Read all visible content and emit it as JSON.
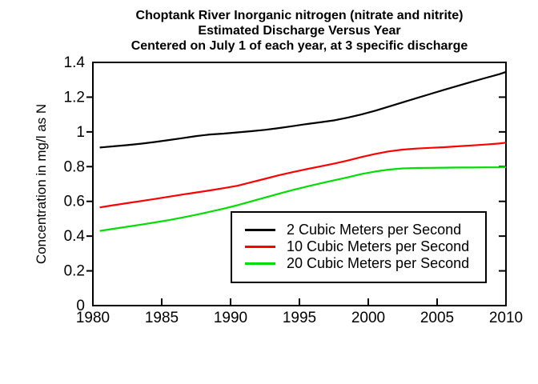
{
  "chart_data": {
    "type": "line",
    "title_lines": [
      "Choptank River Inorganic nitrogen (nitrate and nitrite)",
      "Estimated Discharge Versus Year",
      "Centered on July 1 of each year, at 3 specific discharge"
    ],
    "xlabel": "",
    "ylabel": "Concentration in mg/l as N",
    "x_range": [
      1980,
      2010
    ],
    "y_range": [
      0,
      1.4
    ],
    "x_ticks": [
      1980,
      1985,
      1990,
      1995,
      2000,
      2005,
      2010
    ],
    "x_tick_labels": [
      "1980",
      "1985",
      "1990",
      "1995",
      "2000",
      "2005",
      "2010"
    ],
    "y_ticks": [
      0,
      0.2,
      0.4,
      0.6,
      0.8,
      1,
      1.2,
      1.4
    ],
    "y_tick_labels": [
      "0",
      "0.2",
      "0.4",
      "0.6",
      "0.8",
      "1",
      "1.2",
      "1.4"
    ],
    "grid": false,
    "legend_position": "inside-lower-right",
    "axis_color": "#000000",
    "background_color": "#ffffff",
    "series": [
      {
        "name": "2 Cubic Meters per Second",
        "color": "#000000",
        "points": [
          [
            1980.5,
            0.91
          ],
          [
            1981.5,
            0.917
          ],
          [
            1982.5,
            0.924
          ],
          [
            1983.5,
            0.932
          ],
          [
            1984.5,
            0.942
          ],
          [
            1985.5,
            0.953
          ],
          [
            1986.5,
            0.964
          ],
          [
            1987.5,
            0.976
          ],
          [
            1988.5,
            0.985
          ],
          [
            1989.5,
            0.99
          ],
          [
            1990.5,
            0.997
          ],
          [
            1991.5,
            1.004
          ],
          [
            1992.5,
            1.012
          ],
          [
            1993.5,
            1.022
          ],
          [
            1994.5,
            1.033
          ],
          [
            1995.5,
            1.045
          ],
          [
            1996.5,
            1.055
          ],
          [
            1997.5,
            1.066
          ],
          [
            1998.5,
            1.082
          ],
          [
            1999.5,
            1.1
          ],
          [
            2000.5,
            1.122
          ],
          [
            2001.5,
            1.146
          ],
          [
            2002.5,
            1.17
          ],
          [
            2003.5,
            1.194
          ],
          [
            2004.5,
            1.218
          ],
          [
            2005.5,
            1.242
          ],
          [
            2006.5,
            1.265
          ],
          [
            2007.5,
            1.288
          ],
          [
            2008.5,
            1.31
          ],
          [
            2009.5,
            1.332
          ],
          [
            2010,
            1.345
          ]
        ]
      },
      {
        "name": "10 Cubic Meters per Second",
        "color": "#ff0000",
        "points": [
          [
            1980.5,
            0.565
          ],
          [
            1981.5,
            0.578
          ],
          [
            1982.5,
            0.59
          ],
          [
            1983.5,
            0.602
          ],
          [
            1984.5,
            0.614
          ],
          [
            1985.5,
            0.627
          ],
          [
            1986.5,
            0.639
          ],
          [
            1987.5,
            0.651
          ],
          [
            1988.5,
            0.663
          ],
          [
            1989.5,
            0.676
          ],
          [
            1990.5,
            0.69
          ],
          [
            1991.5,
            0.71
          ],
          [
            1992.5,
            0.73
          ],
          [
            1993.5,
            0.75
          ],
          [
            1994.5,
            0.768
          ],
          [
            1995.5,
            0.785
          ],
          [
            1996.5,
            0.801
          ],
          [
            1997.5,
            0.817
          ],
          [
            1998.5,
            0.835
          ],
          [
            1999.5,
            0.855
          ],
          [
            2000.5,
            0.873
          ],
          [
            2001.5,
            0.888
          ],
          [
            2002.5,
            0.898
          ],
          [
            2003.5,
            0.904
          ],
          [
            2004.5,
            0.908
          ],
          [
            2005.5,
            0.912
          ],
          [
            2006.5,
            0.917
          ],
          [
            2007.5,
            0.922
          ],
          [
            2008.5,
            0.927
          ],
          [
            2009.5,
            0.933
          ],
          [
            2010,
            0.938
          ]
        ]
      },
      {
        "name": "20 Cubic Meters per Second",
        "color": "#00dd00",
        "points": [
          [
            1980.5,
            0.43
          ],
          [
            1981.5,
            0.442
          ],
          [
            1982.5,
            0.454
          ],
          [
            1983.5,
            0.466
          ],
          [
            1984.5,
            0.479
          ],
          [
            1985.5,
            0.492
          ],
          [
            1986.5,
            0.507
          ],
          [
            1987.5,
            0.523
          ],
          [
            1988.5,
            0.54
          ],
          [
            1989.5,
            0.558
          ],
          [
            1990.5,
            0.578
          ],
          [
            1991.5,
            0.6
          ],
          [
            1992.5,
            0.622
          ],
          [
            1993.5,
            0.644
          ],
          [
            1994.5,
            0.665
          ],
          [
            1995.5,
            0.685
          ],
          [
            1996.5,
            0.703
          ],
          [
            1997.5,
            0.721
          ],
          [
            1998.5,
            0.738
          ],
          [
            1999.5,
            0.757
          ],
          [
            2000.5,
            0.772
          ],
          [
            2001.5,
            0.783
          ],
          [
            2002.5,
            0.79
          ],
          [
            2003.5,
            0.792
          ],
          [
            2004.5,
            0.793
          ],
          [
            2005.5,
            0.794
          ],
          [
            2006.5,
            0.795
          ],
          [
            2007.5,
            0.795
          ],
          [
            2008.5,
            0.796
          ],
          [
            2009.5,
            0.796
          ],
          [
            2010,
            0.797
          ]
        ]
      }
    ]
  }
}
